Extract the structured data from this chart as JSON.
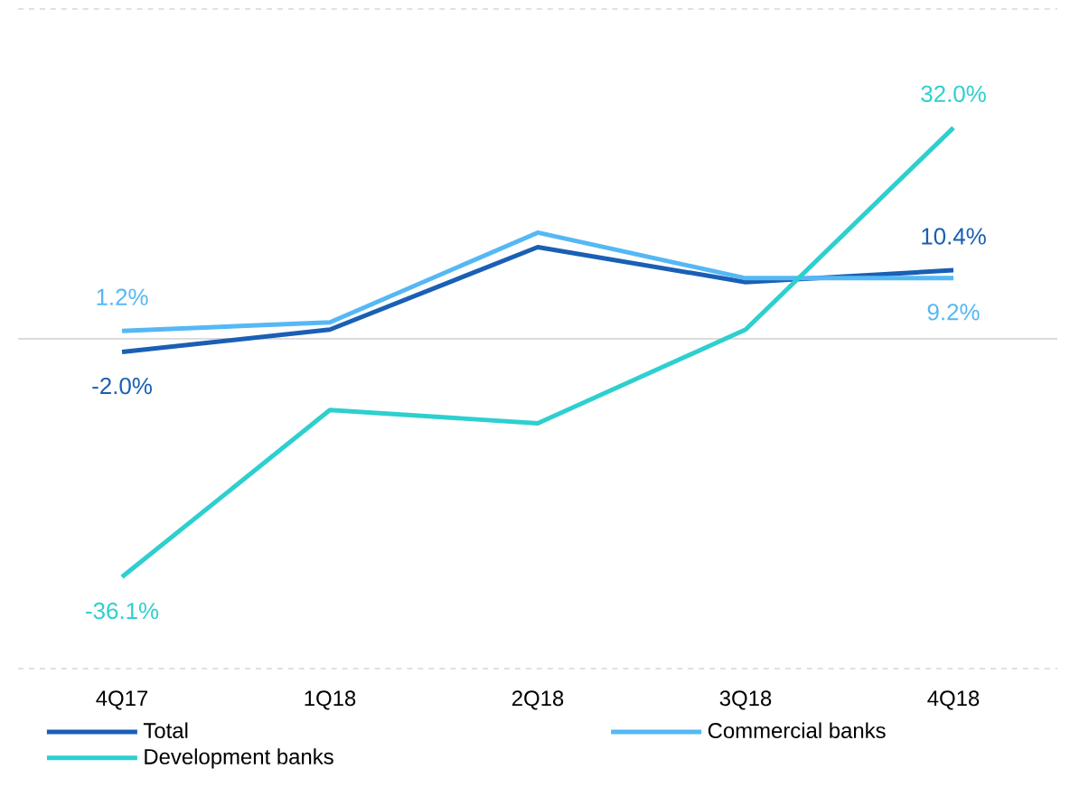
{
  "chart_data": {
    "type": "line",
    "categories": [
      "4Q17",
      "1Q18",
      "2Q18",
      "3Q18",
      "4Q18"
    ],
    "ylim": [
      -50,
      50
    ],
    "yticks": [
      {
        "value": -50,
        "label": null
      },
      {
        "value": 50,
        "label": null
      }
    ],
    "grid": "y",
    "tick_labels": "x",
    "legend": "bottom",
    "series": [
      {
        "name": "Total",
        "color": "#1a5fb4",
        "values": [
          -2.0,
          1.4,
          13.9,
          8.6,
          10.4
        ],
        "value_labels": [
          "-2.0%",
          null,
          null,
          null,
          "10.4%"
        ]
      },
      {
        "name": "Commercial banks",
        "color": "#55b8f5",
        "values": [
          1.2,
          2.5,
          16.1,
          9.2,
          9.2
        ],
        "value_labels": [
          "1.2%",
          null,
          null,
          null,
          "9.2%"
        ]
      },
      {
        "name": "Development banks",
        "color": "#2ecfcf",
        "values": [
          -36.1,
          -10.8,
          -12.8,
          1.4,
          32.0
        ],
        "value_labels": [
          "-36.1%",
          null,
          null,
          null,
          "32.0%"
        ]
      }
    ]
  }
}
